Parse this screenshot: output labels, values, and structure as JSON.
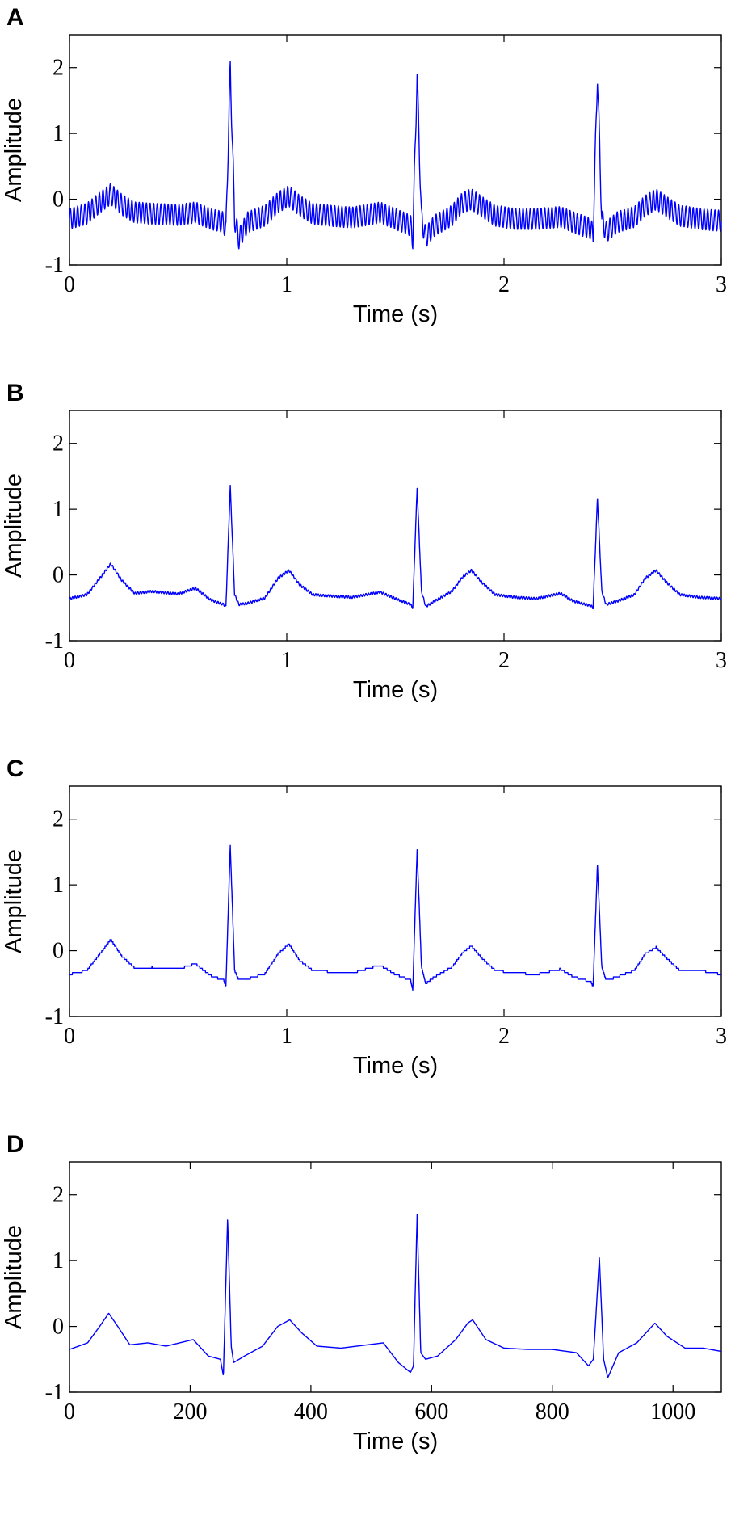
{
  "chart_data": [
    {
      "panel_label": "A",
      "type": "line",
      "xlabel": "Time (s)",
      "ylabel": "Amplitude",
      "xlim": [
        0,
        3
      ],
      "ylim": [
        -1,
        2.5
      ],
      "xticks": [
        0,
        1,
        2,
        3
      ],
      "xtick_labels": [
        "0",
        "1",
        "2",
        "3"
      ],
      "yticks": [
        -1,
        0,
        1,
        2
      ],
      "ytick_labels": [
        "-1",
        "0",
        "1",
        "2"
      ],
      "color": "#0000ff",
      "grid": false,
      "noise": "high-frequency powerline interference",
      "series": [
        {
          "x": [
            0.0,
            0.08,
            0.14,
            0.19,
            0.24,
            0.3,
            0.38,
            0.5,
            0.58,
            0.65,
            0.71,
            0.72,
            0.74,
            0.76,
            0.78,
            0.82,
            0.9,
            0.96,
            1.01,
            1.06,
            1.12,
            1.2,
            1.3,
            1.43,
            1.5,
            1.57,
            1.58,
            1.6,
            1.62,
            1.64,
            1.68,
            1.76,
            1.81,
            1.85,
            1.9,
            1.96,
            2.05,
            2.15,
            2.26,
            2.32,
            2.4,
            2.41,
            2.43,
            2.45,
            2.47,
            2.52,
            2.6,
            2.65,
            2.7,
            2.75,
            2.81,
            2.9,
            3.0
          ],
          "y": [
            -0.3,
            -0.22,
            -0.05,
            0.08,
            -0.08,
            -0.2,
            -0.22,
            -0.24,
            -0.2,
            -0.3,
            -0.35,
            -0.5,
            2.0,
            -0.3,
            -0.6,
            -0.35,
            -0.25,
            -0.05,
            0.05,
            -0.1,
            -0.22,
            -0.25,
            -0.28,
            -0.2,
            -0.3,
            -0.4,
            -0.6,
            1.9,
            -0.3,
            -0.58,
            -0.4,
            -0.25,
            -0.05,
            0.0,
            -0.12,
            -0.25,
            -0.3,
            -0.3,
            -0.27,
            -0.35,
            -0.45,
            -0.55,
            1.9,
            -0.3,
            -0.5,
            -0.35,
            -0.27,
            -0.1,
            0.0,
            -0.12,
            -0.25,
            -0.3,
            -0.33
          ]
        }
      ]
    },
    {
      "panel_label": "B",
      "type": "line",
      "xlabel": "Time (s)",
      "ylabel": "Amplitude",
      "xlim": [
        0,
        3
      ],
      "ylim": [
        -1,
        2.5
      ],
      "xticks": [
        0,
        1,
        2,
        3
      ],
      "xtick_labels": [
        "0",
        "1",
        "2",
        "3"
      ],
      "yticks": [
        -1,
        0,
        1,
        2
      ],
      "ytick_labels": [
        "-1",
        "0",
        "1",
        "2"
      ],
      "color": "#0000ff",
      "grid": false,
      "noise": "low",
      "series": [
        {
          "x": [
            0.0,
            0.08,
            0.14,
            0.19,
            0.24,
            0.3,
            0.38,
            0.5,
            0.58,
            0.65,
            0.71,
            0.72,
            0.74,
            0.76,
            0.78,
            0.82,
            0.9,
            0.96,
            1.01,
            1.06,
            1.12,
            1.2,
            1.3,
            1.43,
            1.5,
            1.57,
            1.58,
            1.6,
            1.62,
            1.64,
            1.68,
            1.76,
            1.81,
            1.85,
            1.9,
            1.96,
            2.05,
            2.15,
            2.26,
            2.32,
            2.4,
            2.41,
            2.43,
            2.45,
            2.47,
            2.52,
            2.6,
            2.65,
            2.7,
            2.75,
            2.81,
            2.9,
            3.0
          ],
          "y": [
            -0.36,
            -0.3,
            -0.05,
            0.17,
            -0.08,
            -0.28,
            -0.25,
            -0.29,
            -0.2,
            -0.38,
            -0.45,
            -0.48,
            1.35,
            -0.3,
            -0.45,
            -0.43,
            -0.35,
            -0.05,
            0.07,
            -0.15,
            -0.3,
            -0.32,
            -0.34,
            -0.26,
            -0.36,
            -0.45,
            -0.5,
            1.33,
            -0.25,
            -0.48,
            -0.4,
            -0.25,
            -0.03,
            0.07,
            -0.12,
            -0.3,
            -0.34,
            -0.36,
            -0.28,
            -0.4,
            -0.47,
            -0.5,
            1.17,
            -0.25,
            -0.45,
            -0.4,
            -0.3,
            -0.05,
            0.07,
            -0.12,
            -0.3,
            -0.34,
            -0.36
          ]
        }
      ]
    },
    {
      "panel_label": "C",
      "type": "line",
      "xlabel": "Time (s)",
      "ylabel": "Amplitude",
      "xlim": [
        0,
        3
      ],
      "ylim": [
        -1,
        2.5
      ],
      "xticks": [
        0,
        1,
        2,
        3
      ],
      "xtick_labels": [
        "0",
        "1",
        "2",
        "3"
      ],
      "yticks": [
        -1,
        0,
        1,
        2
      ],
      "ytick_labels": [
        "-1",
        "0",
        "1",
        "2"
      ],
      "color": "#0000ff",
      "grid": false,
      "noise": "none (stepped)",
      "series": [
        {
          "x": [
            0.0,
            0.08,
            0.14,
            0.19,
            0.24,
            0.3,
            0.38,
            0.5,
            0.58,
            0.65,
            0.71,
            0.72,
            0.74,
            0.76,
            0.78,
            0.82,
            0.9,
            0.96,
            1.01,
            1.06,
            1.12,
            1.2,
            1.3,
            1.43,
            1.5,
            1.57,
            1.58,
            1.6,
            1.62,
            1.64,
            1.68,
            1.76,
            1.81,
            1.85,
            1.9,
            1.96,
            2.05,
            2.15,
            2.26,
            2.32,
            2.4,
            2.41,
            2.43,
            2.45,
            2.47,
            2.52,
            2.6,
            2.65,
            2.7,
            2.75,
            2.81,
            2.9,
            3.0
          ],
          "y": [
            -0.36,
            -0.3,
            -0.05,
            0.17,
            -0.08,
            -0.26,
            -0.25,
            -0.28,
            -0.2,
            -0.38,
            -0.45,
            -0.55,
            1.6,
            -0.3,
            -0.45,
            -0.43,
            -0.35,
            -0.05,
            0.1,
            -0.15,
            -0.3,
            -0.32,
            -0.34,
            -0.22,
            -0.36,
            -0.45,
            -0.6,
            1.55,
            -0.25,
            -0.5,
            -0.4,
            -0.25,
            -0.03,
            0.07,
            -0.12,
            -0.3,
            -0.34,
            -0.36,
            -0.28,
            -0.4,
            -0.47,
            -0.55,
            1.3,
            -0.25,
            -0.45,
            -0.4,
            -0.3,
            -0.05,
            0.05,
            -0.12,
            -0.3,
            -0.3,
            -0.36
          ]
        }
      ]
    },
    {
      "panel_label": "D",
      "type": "line",
      "xlabel": "Time (s)",
      "ylabel": "Amplitude",
      "xlim": [
        0,
        1080
      ],
      "ylim": [
        -1,
        2.5
      ],
      "xticks": [
        0,
        200,
        400,
        600,
        800,
        1000
      ],
      "xtick_labels": [
        "0",
        "200",
        "400",
        "600",
        "800",
        "1000"
      ],
      "yticks": [
        -1,
        0,
        1,
        2
      ],
      "ytick_labels": [
        "-1",
        "0",
        "1",
        "2"
      ],
      "color": "#0000ff",
      "grid": false,
      "noise": "none",
      "series": [
        {
          "x": [
            0,
            30,
            50,
            65,
            80,
            100,
            130,
            160,
            205,
            230,
            250,
            255,
            262,
            268,
            272,
            290,
            320,
            345,
            365,
            385,
            410,
            450,
            520,
            545,
            565,
            570,
            576,
            582,
            590,
            610,
            640,
            660,
            668,
            690,
            720,
            760,
            800,
            840,
            860,
            868,
            878,
            885,
            892,
            910,
            940,
            960,
            970,
            990,
            1020,
            1050,
            1080
          ],
          "y": [
            -0.35,
            -0.25,
            0.0,
            0.2,
            0.0,
            -0.28,
            -0.25,
            -0.3,
            -0.2,
            -0.45,
            -0.5,
            -0.75,
            1.65,
            -0.3,
            -0.55,
            -0.45,
            -0.3,
            0.0,
            0.1,
            -0.1,
            -0.3,
            -0.33,
            -0.25,
            -0.55,
            -0.7,
            -0.6,
            1.7,
            -0.4,
            -0.5,
            -0.45,
            -0.2,
            0.05,
            0.1,
            -0.2,
            -0.33,
            -0.35,
            -0.35,
            -0.4,
            -0.6,
            -0.5,
            1.05,
            -0.5,
            -0.78,
            -0.4,
            -0.25,
            -0.05,
            0.05,
            -0.15,
            -0.33,
            -0.33,
            -0.38
          ]
        }
      ]
    }
  ]
}
